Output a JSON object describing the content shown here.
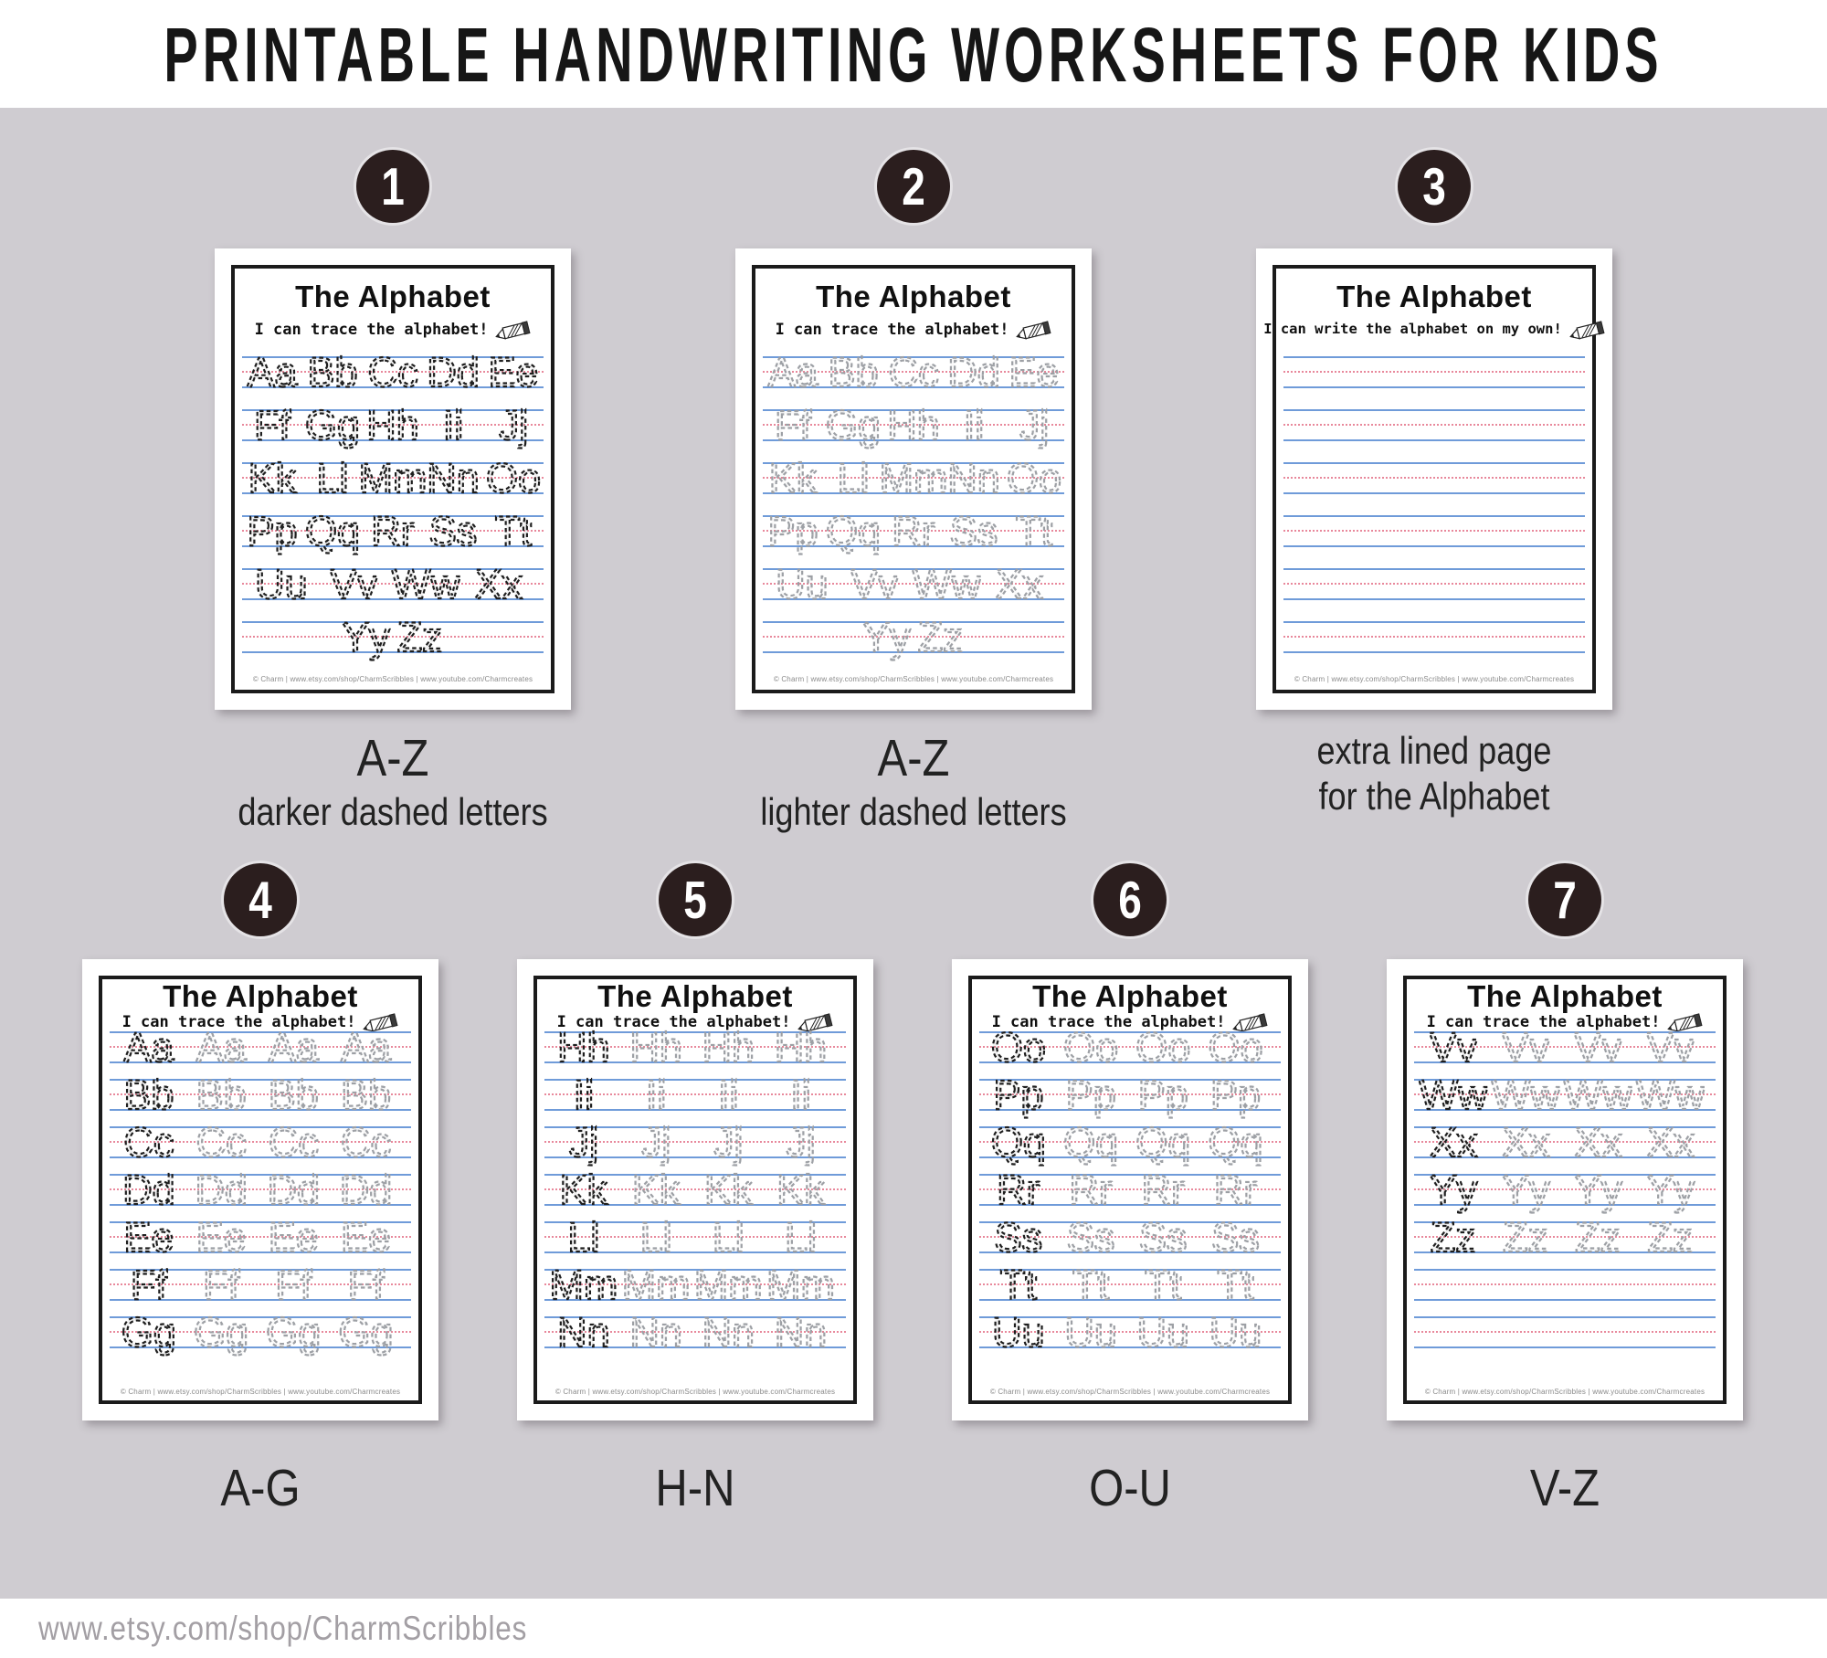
{
  "header": {
    "title": "PRINTABLE HANDWRITING WORKSHEETS FOR KIDS"
  },
  "footer": {
    "url": "www.etsy.com/shop/CharmScribbles"
  },
  "colors": {
    "bg": "#cfccd1",
    "circle": "#2b1e1e",
    "blue": "#6f9bd9",
    "red": "#e8889b",
    "dark": "#1e1e1e",
    "light": "#9da0a5"
  },
  "page_common": {
    "copyright": "© Charm | www.etsy.com/shop/CharmScribbles | www.youtube.com/Charmcreates"
  },
  "rows": {
    "top": [
      {
        "number": "1",
        "title": "The Alphabet",
        "subtitle": "I can trace the alphabet!",
        "shade": "dark",
        "caption_lines": [
          "A-Z",
          "darker dashed letters"
        ],
        "letter_rows": [
          [
            "Aa",
            "Bb",
            "Cc",
            "Dd",
            "Ee"
          ],
          [
            "Ff",
            "Gg",
            "Hh",
            "Ii",
            "Jj"
          ],
          [
            "Kk",
            "Ll",
            "Mm",
            "Nn",
            "Oo"
          ],
          [
            "Pp",
            "Qq",
            "Rr",
            "Ss",
            "Tt"
          ],
          [
            "Uu",
            "Vv",
            "Ww",
            "Xx"
          ],
          [
            "Yy",
            "Zz"
          ]
        ]
      },
      {
        "number": "2",
        "title": "The Alphabet",
        "subtitle": "I can trace the alphabet!",
        "shade": "light",
        "caption_lines": [
          "A-Z",
          "lighter dashed letters"
        ],
        "letter_rows": [
          [
            "Aa",
            "Bb",
            "Cc",
            "Dd",
            "Ee"
          ],
          [
            "Ff",
            "Gg",
            "Hh",
            "Ii",
            "Jj"
          ],
          [
            "Kk",
            "Ll",
            "Mm",
            "Nn",
            "Oo"
          ],
          [
            "Pp",
            "Qq",
            "Rr",
            "Ss",
            "Tt"
          ],
          [
            "Uu",
            "Vv",
            "Ww",
            "Xx"
          ],
          [
            "Yy",
            "Zz"
          ]
        ]
      },
      {
        "number": "3",
        "title": "The Alphabet",
        "subtitle": "I can write the alphabet on my own!",
        "shade": "dark",
        "caption_lines": [
          "extra lined page",
          "for the Alphabet"
        ],
        "letter_rows": [
          [],
          [],
          [],
          [],
          [],
          []
        ]
      }
    ],
    "bottom": [
      {
        "number": "4",
        "title": "The Alphabet",
        "subtitle": "I can trace the alphabet!",
        "shade": "mixed",
        "caption_lines": [
          "A-G"
        ],
        "letter_rows": [
          [
            "Aa",
            "Aa",
            "Aa",
            "Aa"
          ],
          [
            "Bb",
            "Bb",
            "Bb",
            "Bb"
          ],
          [
            "Cc",
            "Cc",
            "Cc",
            "Cc"
          ],
          [
            "Dd",
            "Dd",
            "Dd",
            "Dd"
          ],
          [
            "Ee",
            "Ee",
            "Ee",
            "Ee"
          ],
          [
            "Ff",
            "Ff",
            "Ff",
            "Ff"
          ],
          [
            "Gg",
            "Gg",
            "Gg",
            "Gg"
          ]
        ]
      },
      {
        "number": "5",
        "title": "The Alphabet",
        "subtitle": "I can trace the alphabet!",
        "shade": "mixed",
        "caption_lines": [
          "H-N"
        ],
        "letter_rows": [
          [
            "Hh",
            "Hh",
            "Hh",
            "Hh"
          ],
          [
            "Ii",
            "Ii",
            "Ii",
            "Ii"
          ],
          [
            "Jj",
            "Jj",
            "Jj",
            "Jj"
          ],
          [
            "Kk",
            "Kk",
            "Kk",
            "Kk"
          ],
          [
            "Ll",
            "Ll",
            "Ll",
            "Ll"
          ],
          [
            "Mm",
            "Mm",
            "Mm",
            "Mm"
          ],
          [
            "Nn",
            "Nn",
            "Nn",
            "Nn"
          ]
        ]
      },
      {
        "number": "6",
        "title": "The Alphabet",
        "subtitle": "I can trace the alphabet!",
        "shade": "mixed",
        "caption_lines": [
          "O-U"
        ],
        "letter_rows": [
          [
            "Oo",
            "Oo",
            "Oo",
            "Oo"
          ],
          [
            "Pp",
            "Pp",
            "Pp",
            "Pp"
          ],
          [
            "Qq",
            "Qq",
            "Qq",
            "Qq"
          ],
          [
            "Rr",
            "Rr",
            "Rr",
            "Rr"
          ],
          [
            "Ss",
            "Ss",
            "Ss",
            "Ss"
          ],
          [
            "Tt",
            "Tt",
            "Tt",
            "Tt"
          ],
          [
            "Uu",
            "Uu",
            "Uu",
            "Uu"
          ]
        ]
      },
      {
        "number": "7",
        "title": "The Alphabet",
        "subtitle": "I can trace the alphabet!",
        "shade": "mixed",
        "caption_lines": [
          "V-Z"
        ],
        "letter_rows": [
          [
            "Vv",
            "Vv",
            "Vv",
            "Vv"
          ],
          [
            "Ww",
            "Ww",
            "Ww",
            "Ww"
          ],
          [
            "Xx",
            "Xx",
            "Xx",
            "Xx"
          ],
          [
            "Yy",
            "Yy",
            "Yy",
            "Yy"
          ],
          [
            "Zz",
            "Zz",
            "Zz",
            "Zz"
          ],
          [],
          []
        ]
      }
    ]
  }
}
